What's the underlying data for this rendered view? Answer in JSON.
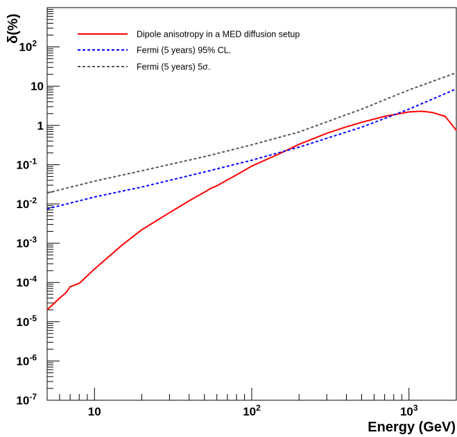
{
  "chart_data": {
    "type": "line",
    "title": "",
    "xlabel": "Energy (GeV)",
    "ylabel": "δ(%)",
    "xscale": "log",
    "yscale": "log",
    "xlim": [
      5,
      2000
    ],
    "ylim": [
      1e-07,
      1000
    ],
    "grid": false,
    "legend_position": "top-left",
    "x_tick_labels": [
      {
        "value": 10,
        "base": "10",
        "exp": ""
      },
      {
        "value": 100,
        "base": "10",
        "exp": "2"
      },
      {
        "value": 1000,
        "base": "10",
        "exp": "3"
      }
    ],
    "y_tick_labels": [
      {
        "value": 1e-07,
        "base": "10",
        "exp": "-7"
      },
      {
        "value": 1e-06,
        "base": "10",
        "exp": "-6"
      },
      {
        "value": 1e-05,
        "base": "10",
        "exp": "-5"
      },
      {
        "value": 0.0001,
        "base": "10",
        "exp": "-4"
      },
      {
        "value": 0.001,
        "base": "10",
        "exp": "-3"
      },
      {
        "value": 0.01,
        "base": "10",
        "exp": "-2"
      },
      {
        "value": 0.1,
        "base": "10",
        "exp": "-1"
      },
      {
        "value": 1,
        "base": "1",
        "exp": ""
      },
      {
        "value": 10,
        "base": "10",
        "exp": ""
      },
      {
        "value": 100,
        "base": "10",
        "exp": "2"
      }
    ],
    "series": [
      {
        "name": "Dipole anisotropy in a MED diffusion setup",
        "color": "#ff0000",
        "style": "solid",
        "x": [
          5,
          6,
          6.6,
          7,
          8,
          10,
          15,
          20,
          30,
          40,
          50,
          55,
          60,
          80,
          100,
          150,
          200,
          300,
          400,
          500,
          700,
          1000,
          1200,
          1400,
          1700,
          2000
        ],
        "y": [
          2e-05,
          4e-05,
          5.5e-05,
          7.8e-05,
          9.5e-05,
          0.00022,
          0.0009,
          0.0022,
          0.006,
          0.012,
          0.02,
          0.025,
          0.029,
          0.055,
          0.092,
          0.19,
          0.33,
          0.63,
          0.92,
          1.2,
          1.7,
          2.2,
          2.3,
          2.15,
          1.7,
          0.75
        ]
      },
      {
        "name": "Fermi (5 years) 95% CL.",
        "color": "#0000ff",
        "style": "dashed",
        "x": [
          5,
          10,
          20,
          50,
          100,
          200,
          500,
          1000,
          2000
        ],
        "y": [
          0.0075,
          0.015,
          0.027,
          0.065,
          0.13,
          0.28,
          0.9,
          2.6,
          8.5
        ]
      },
      {
        "name": "Fermi (5 years) 5σ.",
        "color": "#555555",
        "style": "dashed",
        "x": [
          5,
          10,
          20,
          50,
          100,
          200,
          500,
          1000,
          2000
        ],
        "y": [
          0.019,
          0.038,
          0.07,
          0.16,
          0.32,
          0.68,
          2.6,
          8,
          22
        ]
      }
    ]
  }
}
